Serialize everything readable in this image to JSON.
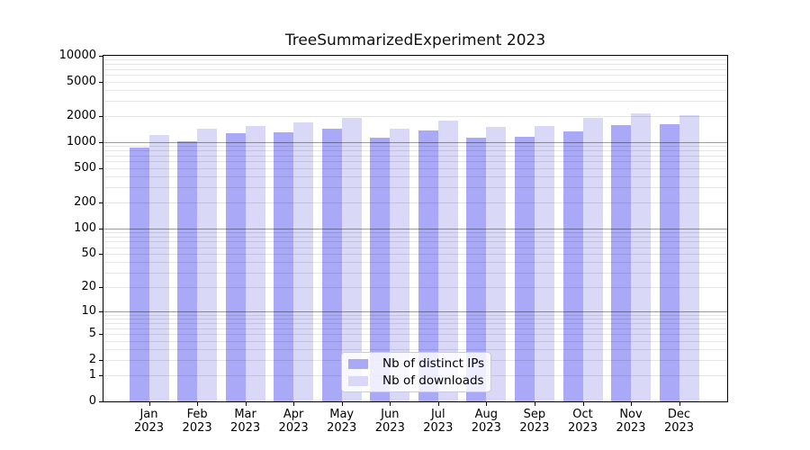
{
  "chart_data": {
    "type": "bar",
    "title": "TreeSummarizedExperiment 2023",
    "categories": [
      "Jan 2023",
      "Feb 2023",
      "Mar 2023",
      "Apr 2023",
      "May 2023",
      "Jun 2023",
      "Jul 2023",
      "Aug 2023",
      "Sep 2023",
      "Oct 2023",
      "Nov 2023",
      "Dec 2023"
    ],
    "months": [
      "Jan",
      "Feb",
      "Mar",
      "Apr",
      "May",
      "Jun",
      "Jul",
      "Aug",
      "Sep",
      "Oct",
      "Nov",
      "Dec"
    ],
    "year": "2023",
    "series": [
      {
        "name": "Nb of distinct IPs",
        "color": "#a9a9f8",
        "values": [
          870,
          1030,
          1260,
          1290,
          1420,
          1130,
          1370,
          1130,
          1150,
          1350,
          1580,
          1610
        ]
      },
      {
        "name": "Nb of downloads",
        "color": "#d9d9f7",
        "values": [
          1200,
          1450,
          1550,
          1710,
          1910,
          1440,
          1780,
          1490,
          1550,
          1890,
          2150,
          2040
        ]
      }
    ],
    "xlabel": "",
    "ylabel": "",
    "ylim": [
      0,
      10000
    ],
    "y_scale": "log10(value+1)",
    "y_ticks": [
      10000,
      5000,
      2000,
      1000,
      500,
      200,
      100,
      50,
      20,
      10,
      5,
      2,
      1,
      0
    ],
    "major_gridline_values": [
      10,
      100,
      1000
    ],
    "grid": "horizontal minor log gridlines on",
    "legend_position": "inside lower center"
  },
  "colors": {
    "bar_distinct_ips": "#a9a9f8",
    "bar_downloads": "#d9d9f7",
    "axis": "#000000",
    "background": "#ffffff"
  }
}
